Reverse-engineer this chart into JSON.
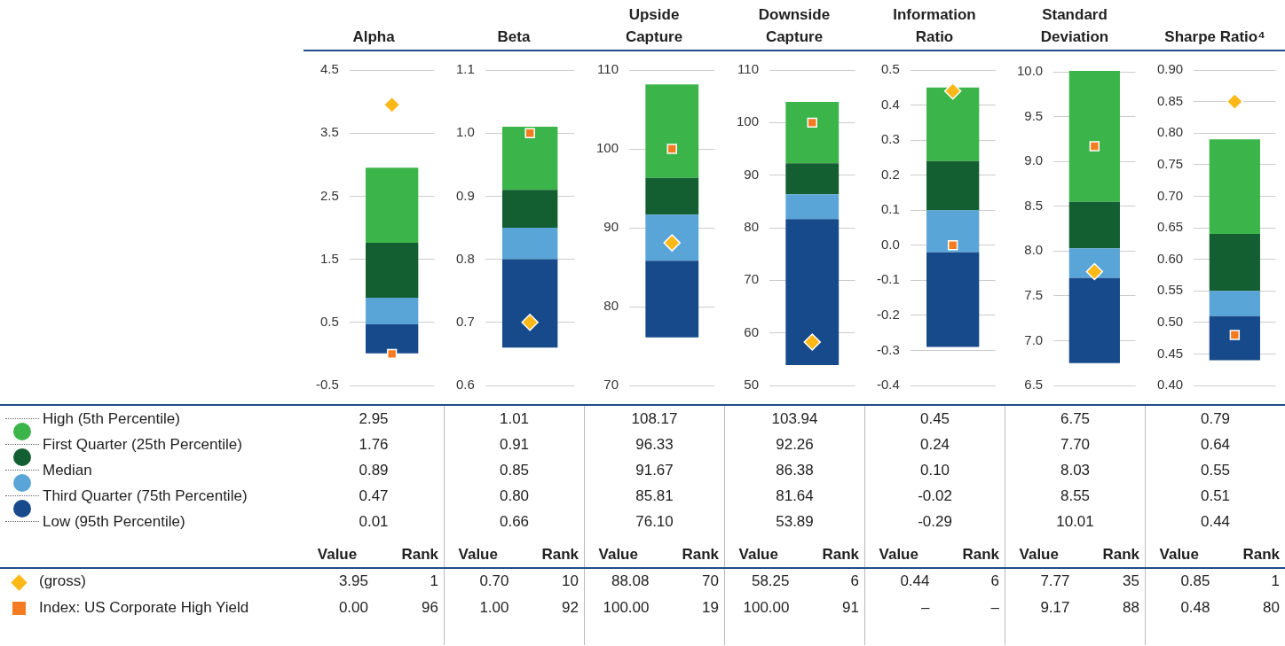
{
  "chart_data": [
    {
      "type": "bar",
      "title": "Alpha",
      "categories": [
        null
      ],
      "ylim": [
        -0.5,
        4.5
      ],
      "yticks": [
        -0.5,
        0.5,
        1.5,
        2.5,
        3.5,
        4.5
      ],
      "grid": "y",
      "series": [
        {
          "color": "#174a8b",
          "base": [
            0.01
          ],
          "values": [
            0.46
          ]
        },
        {
          "color": "#5aa5d8",
          "base": [
            0.47
          ],
          "values": [
            0.42
          ]
        },
        {
          "color": "#145f32",
          "base": [
            0.89
          ],
          "values": [
            0.87
          ]
        },
        {
          "color": "#3bb54a",
          "base": [
            1.76
          ],
          "values": [
            1.19
          ]
        },
        {
          "name": "(gross)",
          "type": "scatter",
          "marker": "diamond",
          "color": "#fbb817",
          "values": [
            3.95
          ]
        },
        {
          "name": "Index: US Corporate High Yield",
          "type": "scatter",
          "marker": "square",
          "color": "#f47b20",
          "values": [
            0
          ]
        }
      ],
      "annotations": [
        "2.95",
        "1.76",
        "0.89",
        "0.47",
        "0.01",
        "Value",
        "Rank",
        "3.95",
        "1",
        "0.00",
        "96"
      ]
    },
    {
      "type": "bar",
      "title": "Beta",
      "categories": [
        null
      ],
      "ylim": [
        0.6,
        1.1
      ],
      "yticks": [
        0.6,
        0.7,
        0.8,
        0.9,
        {
          "value": 1,
          "label": "1.0"
        },
        1.1
      ],
      "grid": "y",
      "series": [
        {
          "color": "#174a8b",
          "base": [
            0.66
          ],
          "values": [
            0.14
          ]
        },
        {
          "color": "#5aa5d8",
          "base": [
            0.8
          ],
          "values": [
            0.05
          ]
        },
        {
          "color": "#145f32",
          "base": [
            0.85
          ],
          "values": [
            0.06
          ]
        },
        {
          "color": "#3bb54a",
          "base": [
            0.91
          ],
          "values": [
            0.1
          ]
        },
        {
          "type": "scatter",
          "marker": "diamond",
          "color": "#fbb817",
          "values": [
            0.7
          ]
        },
        {
          "type": "scatter",
          "marker": "square",
          "color": "#f47b20",
          "values": [
            1
          ]
        }
      ],
      "annotations": [
        "1.01",
        "0.91",
        "0.85",
        "0.80",
        "0.66",
        "Value",
        "Rank",
        "0.70",
        "10",
        "1.00",
        "92"
      ]
    },
    {
      "type": "bar",
      "title": "Upside Capture",
      "categories": [
        null
      ],
      "ylim": [
        70,
        110
      ],
      "yticks": [
        70,
        80,
        90,
        100,
        110
      ],
      "grid": "y",
      "series": [
        {
          "color": "#174a8b",
          "base": [
            76.1
          ],
          "values": [
            9.71
          ]
        },
        {
          "color": "#5aa5d8",
          "base": [
            85.81
          ],
          "values": [
            5.86
          ]
        },
        {
          "color": "#145f32",
          "base": [
            91.67
          ],
          "values": [
            4.66
          ]
        },
        {
          "color": "#3bb54a",
          "base": [
            96.33
          ],
          "values": [
            11.84
          ]
        },
        {
          "type": "scatter",
          "marker": "diamond",
          "color": "#fbb817",
          "values": [
            88.08
          ]
        },
        {
          "type": "scatter",
          "marker": "square",
          "color": "#f47b20",
          "values": [
            100
          ]
        }
      ],
      "annotations": [
        "108.17",
        "96.33",
        "91.67",
        "85.81",
        "76.10",
        "Value",
        "Rank",
        "88.08",
        "70",
        "100.00",
        "19"
      ]
    },
    {
      "type": "bar",
      "title": "Downside Capture",
      "categories": [
        null
      ],
      "ylim": [
        50,
        110
      ],
      "yticks": [
        50,
        60,
        70,
        80,
        90,
        100,
        110
      ],
      "grid": "y",
      "series": [
        {
          "color": "#174a8b",
          "base": [
            53.89
          ],
          "values": [
            27.75
          ]
        },
        {
          "color": "#5aa5d8",
          "base": [
            81.64
          ],
          "values": [
            4.74
          ]
        },
        {
          "color": "#145f32",
          "base": [
            86.38
          ],
          "values": [
            5.88
          ]
        },
        {
          "color": "#3bb54a",
          "base": [
            92.26
          ],
          "values": [
            11.68
          ]
        },
        {
          "type": "scatter",
          "marker": "diamond",
          "color": "#fbb817",
          "values": [
            58.25
          ]
        },
        {
          "type": "scatter",
          "marker": "square",
          "color": "#f47b20",
          "values": [
            100
          ]
        }
      ],
      "annotations": [
        "103.94",
        "92.26",
        "86.38",
        "81.64",
        "53.89",
        "Value",
        "Rank",
        "58.25",
        "6",
        "100.00",
        "91"
      ]
    },
    {
      "type": "bar",
      "title": "Information Ratio",
      "categories": [
        null
      ],
      "ylim": [
        -0.4,
        0.5
      ],
      "yticks": [
        -0.4,
        -0.3,
        -0.2,
        -0.1,
        {
          "value": 0,
          "label": "0.0"
        },
        0.1,
        0.2,
        0.3,
        0.4,
        0.5
      ],
      "grid": "y",
      "series": [
        {
          "color": "#174a8b",
          "base": [
            -0.29
          ],
          "values": [
            0.27
          ]
        },
        {
          "color": "#5aa5d8",
          "base": [
            -0.02
          ],
          "values": [
            0.12
          ]
        },
        {
          "color": "#145f32",
          "base": [
            0.1
          ],
          "values": [
            0.14
          ]
        },
        {
          "color": "#3bb54a",
          "base": [
            0.24
          ],
          "values": [
            0.21
          ]
        },
        {
          "type": "scatter",
          "marker": "diamond",
          "color": "#fbb817",
          "values": [
            0.44
          ]
        },
        {
          "type": "scatter",
          "marker": "square",
          "color": "#f47b20",
          "values": [
            0
          ]
        }
      ],
      "annotations": [
        "0.45",
        "0.24",
        "0.10",
        "-0.02",
        "-0.29",
        "Value",
        "Rank",
        "0.44",
        "6",
        "–",
        "–"
      ]
    },
    {
      "type": "bar",
      "title": "Standard Deviation",
      "categories": [
        null
      ],
      "ylim": [
        6.5,
        10.02
      ],
      "yticks": [
        6.5,
        {
          "value": 7,
          "label": "7.0"
        },
        7.5,
        {
          "value": 8,
          "label": "8.0"
        },
        8.5,
        {
          "value": 9,
          "label": "9.0"
        },
        9.5,
        {
          "value": 10,
          "label": "10.0"
        }
      ],
      "grid": "y",
      "series": [
        {
          "color": "#174a8b",
          "base": [
            6.75
          ],
          "values": [
            0.95
          ]
        },
        {
          "color": "#5aa5d8",
          "base": [
            7.7
          ],
          "values": [
            0.33
          ]
        },
        {
          "color": "#145f32",
          "base": [
            8.03
          ],
          "values": [
            0.52
          ]
        },
        {
          "color": "#3bb54a",
          "base": [
            8.55
          ],
          "values": [
            1.46
          ]
        },
        {
          "type": "scatter",
          "marker": "diamond",
          "color": "#fbb817",
          "values": [
            7.77
          ]
        },
        {
          "type": "scatter",
          "marker": "square",
          "color": "#f47b20",
          "values": [
            9.17
          ]
        }
      ],
      "annotations": [
        "6.75",
        "7.70",
        "8.03",
        "8.55",
        "10.01",
        "Value",
        "Rank",
        "7.77",
        "35",
        "9.17",
        "88"
      ]
    },
    {
      "type": "bar",
      "title": "Sharpe Ratio⁴",
      "categories": [
        null
      ],
      "ylim": [
        0.4,
        0.9
      ],
      "yticks": [
        {
          "value": 0.4,
          "label": "0.40"
        },
        0.45,
        {
          "value": 0.5,
          "label": "0.50"
        },
        0.55,
        {
          "value": 0.6,
          "label": "0.60"
        },
        0.65,
        {
          "value": 0.7,
          "label": "0.70"
        },
        0.75,
        {
          "value": 0.8,
          "label": "0.80"
        },
        0.85,
        {
          "value": 0.9,
          "label": "0.90"
        }
      ],
      "grid": "y",
      "series": [
        {
          "color": "#174a8b",
          "base": [
            0.44
          ],
          "values": [
            0.07
          ]
        },
        {
          "color": "#5aa5d8",
          "base": [
            0.51
          ],
          "values": [
            0.04
          ]
        },
        {
          "color": "#145f32",
          "base": [
            0.55
          ],
          "values": [
            0.09
          ]
        },
        {
          "color": "#3bb54a",
          "base": [
            0.64
          ],
          "values": [
            0.15
          ]
        },
        {
          "type": "scatter",
          "marker": "diamond",
          "color": "#fbb817",
          "values": [
            0.85
          ]
        },
        {
          "type": "scatter",
          "marker": "square",
          "color": "#f47b20",
          "values": [
            0.48
          ]
        }
      ],
      "annotations": [
        "0.79",
        "0.64",
        "0.55",
        "0.51",
        "0.44",
        "Value",
        "Rank",
        "0.85",
        "1",
        "0.48",
        "80"
      ]
    },
    {
      "type": "other",
      "annotations": [
        "High (5th Percentile)",
        "First Quarter (25th Percentile)",
        "Median",
        "Third Quarter (75th Percentile)",
        "Low (95th Percentile)"
      ],
      "colors": [
        "#3bb54a",
        "#145f32",
        "#5aa5d8",
        "#174a8b"
      ]
    }
  ]
}
